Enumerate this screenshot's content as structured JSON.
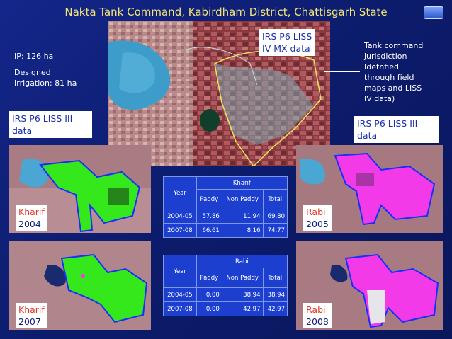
{
  "title": "Nakta Tank Command, Kabirdham District, Chattisgarh State",
  "ip": "IP: 126 ha",
  "designed_line1": "Designed",
  "designed_line2": "Irrigation: 81 ha",
  "top_image_label_line1": "IRS P6 LISS",
  "top_image_label_line2": "IV MX data",
  "note_lines": [
    "Tank command",
    "jurisdiction",
    "Idetnfied",
    "through field",
    "maps and LISS",
    "IV data)"
  ],
  "left_label_line1": "IRS P6 LISS III",
  "left_label_line2": "data",
  "right_label_line1": "IRS P6 LISS III",
  "right_label_line2": "data",
  "images": [
    {
      "season": "Kharif",
      "year": "2004"
    },
    {
      "season": "Kharif",
      "year": "2007"
    },
    {
      "season": "Rabi",
      "year": "2005"
    },
    {
      "season": "Rabi",
      "year": "2008"
    }
  ],
  "colors": {
    "kharif_crop": "#35e81c",
    "rabi_crop": "#f23ae8",
    "boundary": "#1a2cff",
    "water": "#3da6d6"
  },
  "table_kharif": {
    "header_year": "Year",
    "header_season": "Kharif",
    "cols": [
      "Paddy",
      "Non Paddy",
      "Total"
    ],
    "rows": [
      {
        "year": "2004-05",
        "paddy": "57.86",
        "non_paddy": "11.94",
        "total": "69.80"
      },
      {
        "year": "2007-08",
        "paddy": "66.61",
        "non_paddy": "8.16",
        "total": "74.77"
      }
    ]
  },
  "table_rabi": {
    "header_year": "Year",
    "header_season": "Rabi",
    "cols": [
      "Paddy",
      "Non Paddy",
      "Total"
    ],
    "rows": [
      {
        "year": "2004-05",
        "paddy": "0.00",
        "non_paddy": "38.94",
        "total": "38.94"
      },
      {
        "year": "2007-08",
        "paddy": "0.00",
        "non_paddy": "42.97",
        "total": "42.97"
      }
    ]
  }
}
